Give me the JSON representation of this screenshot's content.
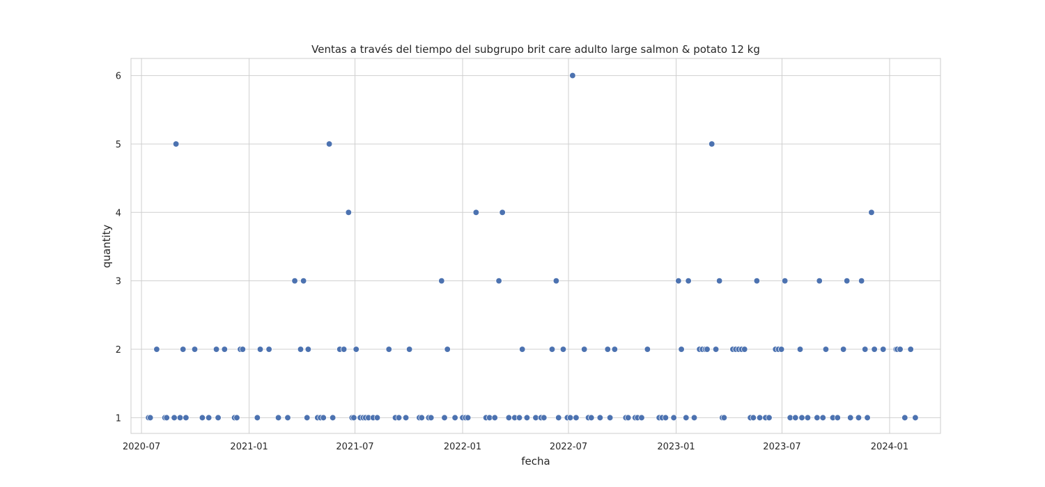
{
  "chart_data": {
    "type": "scatter",
    "title": "Ventas a través del tiempo del subgrupo brit care adulto large salmon & potato 12 kg",
    "xlabel": "fecha",
    "ylabel": "quantity",
    "x_ticks": [
      "2020-07-01",
      "2021-01-01",
      "2021-07-01",
      "2022-01-01",
      "2022-07-01",
      "2023-01-01",
      "2023-07-01",
      "2024-01-01"
    ],
    "x_tick_labels": [
      "2020-07",
      "2021-01",
      "2021-07",
      "2022-01",
      "2022-07",
      "2023-01",
      "2023-07",
      "2024-01"
    ],
    "y_ticks": [
      1,
      2,
      3,
      4,
      5,
      6
    ],
    "xlim": [
      "2020-06-13",
      "2024-03-28"
    ],
    "ylim": [
      0.77,
      6.25
    ],
    "grid": true,
    "marker_color": "#4c72b0",
    "points": [
      [
        "2020-07-13",
        1
      ],
      [
        "2020-07-16",
        1
      ],
      [
        "2020-07-27",
        2
      ],
      [
        "2020-08-10",
        1
      ],
      [
        "2020-08-13",
        1
      ],
      [
        "2020-08-26",
        1
      ],
      [
        "2020-08-29",
        5
      ],
      [
        "2020-09-05",
        1
      ],
      [
        "2020-09-10",
        2
      ],
      [
        "2020-09-15",
        1
      ],
      [
        "2020-09-30",
        2
      ],
      [
        "2020-10-13",
        1
      ],
      [
        "2020-10-24",
        1
      ],
      [
        "2020-11-06",
        2
      ],
      [
        "2020-11-09",
        1
      ],
      [
        "2020-11-20",
        2
      ],
      [
        "2020-12-07",
        1
      ],
      [
        "2020-12-11",
        1
      ],
      [
        "2020-12-17",
        2
      ],
      [
        "2020-12-21",
        2
      ],
      [
        "2021-01-15",
        1
      ],
      [
        "2021-01-20",
        2
      ],
      [
        "2021-02-04",
        2
      ],
      [
        "2021-02-20",
        1
      ],
      [
        "2021-03-08",
        1
      ],
      [
        "2021-03-20",
        3
      ],
      [
        "2021-03-30",
        2
      ],
      [
        "2021-04-04",
        3
      ],
      [
        "2021-04-10",
        1
      ],
      [
        "2021-04-12",
        2
      ],
      [
        "2021-04-28",
        1
      ],
      [
        "2021-05-03",
        1
      ],
      [
        "2021-05-08",
        1
      ],
      [
        "2021-05-18",
        5
      ],
      [
        "2021-05-24",
        1
      ],
      [
        "2021-06-05",
        2
      ],
      [
        "2021-06-12",
        2
      ],
      [
        "2021-06-20",
        4
      ],
      [
        "2021-06-26",
        1
      ],
      [
        "2021-06-29",
        1
      ],
      [
        "2021-07-03",
        2
      ],
      [
        "2021-07-10",
        1
      ],
      [
        "2021-07-15",
        1
      ],
      [
        "2021-07-19",
        1
      ],
      [
        "2021-07-24",
        1
      ],
      [
        "2021-08-01",
        1
      ],
      [
        "2021-08-08",
        1
      ],
      [
        "2021-08-28",
        2
      ],
      [
        "2021-09-08",
        1
      ],
      [
        "2021-09-14",
        1
      ],
      [
        "2021-09-26",
        1
      ],
      [
        "2021-10-02",
        2
      ],
      [
        "2021-10-19",
        1
      ],
      [
        "2021-10-23",
        1
      ],
      [
        "2021-11-04",
        1
      ],
      [
        "2021-11-08",
        1
      ],
      [
        "2021-11-26",
        3
      ],
      [
        "2021-12-01",
        1
      ],
      [
        "2021-12-06",
        2
      ],
      [
        "2021-12-19",
        1
      ],
      [
        "2022-01-01",
        1
      ],
      [
        "2022-01-06",
        1
      ],
      [
        "2022-01-10",
        1
      ],
      [
        "2022-01-24",
        4
      ],
      [
        "2022-02-10",
        1
      ],
      [
        "2022-02-16",
        1
      ],
      [
        "2022-02-25",
        1
      ],
      [
        "2022-03-04",
        3
      ],
      [
        "2022-03-10",
        4
      ],
      [
        "2022-03-21",
        1
      ],
      [
        "2022-03-31",
        1
      ],
      [
        "2022-04-08",
        1
      ],
      [
        "2022-04-13",
        2
      ],
      [
        "2022-04-21",
        1
      ],
      [
        "2022-05-06",
        1
      ],
      [
        "2022-05-15",
        1
      ],
      [
        "2022-05-20",
        1
      ],
      [
        "2022-06-03",
        2
      ],
      [
        "2022-06-10",
        3
      ],
      [
        "2022-06-14",
        1
      ],
      [
        "2022-06-22",
        2
      ],
      [
        "2022-06-29",
        1
      ],
      [
        "2022-07-04",
        1
      ],
      [
        "2022-07-08",
        6
      ],
      [
        "2022-07-14",
        1
      ],
      [
        "2022-07-28",
        2
      ],
      [
        "2022-08-04",
        1
      ],
      [
        "2022-08-09",
        1
      ],
      [
        "2022-08-24",
        1
      ],
      [
        "2022-09-06",
        2
      ],
      [
        "2022-09-10",
        1
      ],
      [
        "2022-09-18",
        2
      ],
      [
        "2022-10-07",
        1
      ],
      [
        "2022-10-11",
        1
      ],
      [
        "2022-10-23",
        1
      ],
      [
        "2022-10-27",
        1
      ],
      [
        "2022-11-03",
        1
      ],
      [
        "2022-11-13",
        2
      ],
      [
        "2022-12-03",
        1
      ],
      [
        "2022-12-08",
        1
      ],
      [
        "2022-12-14",
        1
      ],
      [
        "2022-12-28",
        1
      ],
      [
        "2023-01-05",
        3
      ],
      [
        "2023-01-10",
        2
      ],
      [
        "2023-01-18",
        1
      ],
      [
        "2023-01-22",
        3
      ],
      [
        "2023-02-01",
        1
      ],
      [
        "2023-02-10",
        2
      ],
      [
        "2023-02-15",
        2
      ],
      [
        "2023-02-20",
        2
      ],
      [
        "2023-02-23",
        2
      ],
      [
        "2023-03-03",
        5
      ],
      [
        "2023-03-10",
        2
      ],
      [
        "2023-03-16",
        3
      ],
      [
        "2023-03-21",
        1
      ],
      [
        "2023-03-24",
        1
      ],
      [
        "2023-04-08",
        2
      ],
      [
        "2023-04-13",
        2
      ],
      [
        "2023-04-18",
        2
      ],
      [
        "2023-04-23",
        2
      ],
      [
        "2023-04-28",
        2
      ],
      [
        "2023-05-08",
        1
      ],
      [
        "2023-05-13",
        1
      ],
      [
        "2023-05-19",
        3
      ],
      [
        "2023-05-24",
        1
      ],
      [
        "2023-06-03",
        1
      ],
      [
        "2023-06-09",
        1
      ],
      [
        "2023-06-20",
        2
      ],
      [
        "2023-06-25",
        2
      ],
      [
        "2023-06-30",
        2
      ],
      [
        "2023-07-06",
        3
      ],
      [
        "2023-07-15",
        1
      ],
      [
        "2023-07-24",
        1
      ],
      [
        "2023-08-01",
        2
      ],
      [
        "2023-08-04",
        1
      ],
      [
        "2023-08-14",
        1
      ],
      [
        "2023-08-30",
        1
      ],
      [
        "2023-09-03",
        3
      ],
      [
        "2023-09-09",
        1
      ],
      [
        "2023-09-14",
        2
      ],
      [
        "2023-09-26",
        1
      ],
      [
        "2023-10-04",
        1
      ],
      [
        "2023-10-14",
        2
      ],
      [
        "2023-10-20",
        3
      ],
      [
        "2023-10-26",
        1
      ],
      [
        "2023-11-09",
        1
      ],
      [
        "2023-11-14",
        3
      ],
      [
        "2023-11-20",
        2
      ],
      [
        "2023-11-24",
        1
      ],
      [
        "2023-12-01",
        4
      ],
      [
        "2023-12-06",
        2
      ],
      [
        "2023-12-21",
        2
      ],
      [
        "2024-01-12",
        2
      ],
      [
        "2024-01-14",
        2
      ],
      [
        "2024-01-19",
        2
      ],
      [
        "2024-01-27",
        1
      ],
      [
        "2024-02-06",
        2
      ],
      [
        "2024-02-14",
        1
      ]
    ]
  }
}
